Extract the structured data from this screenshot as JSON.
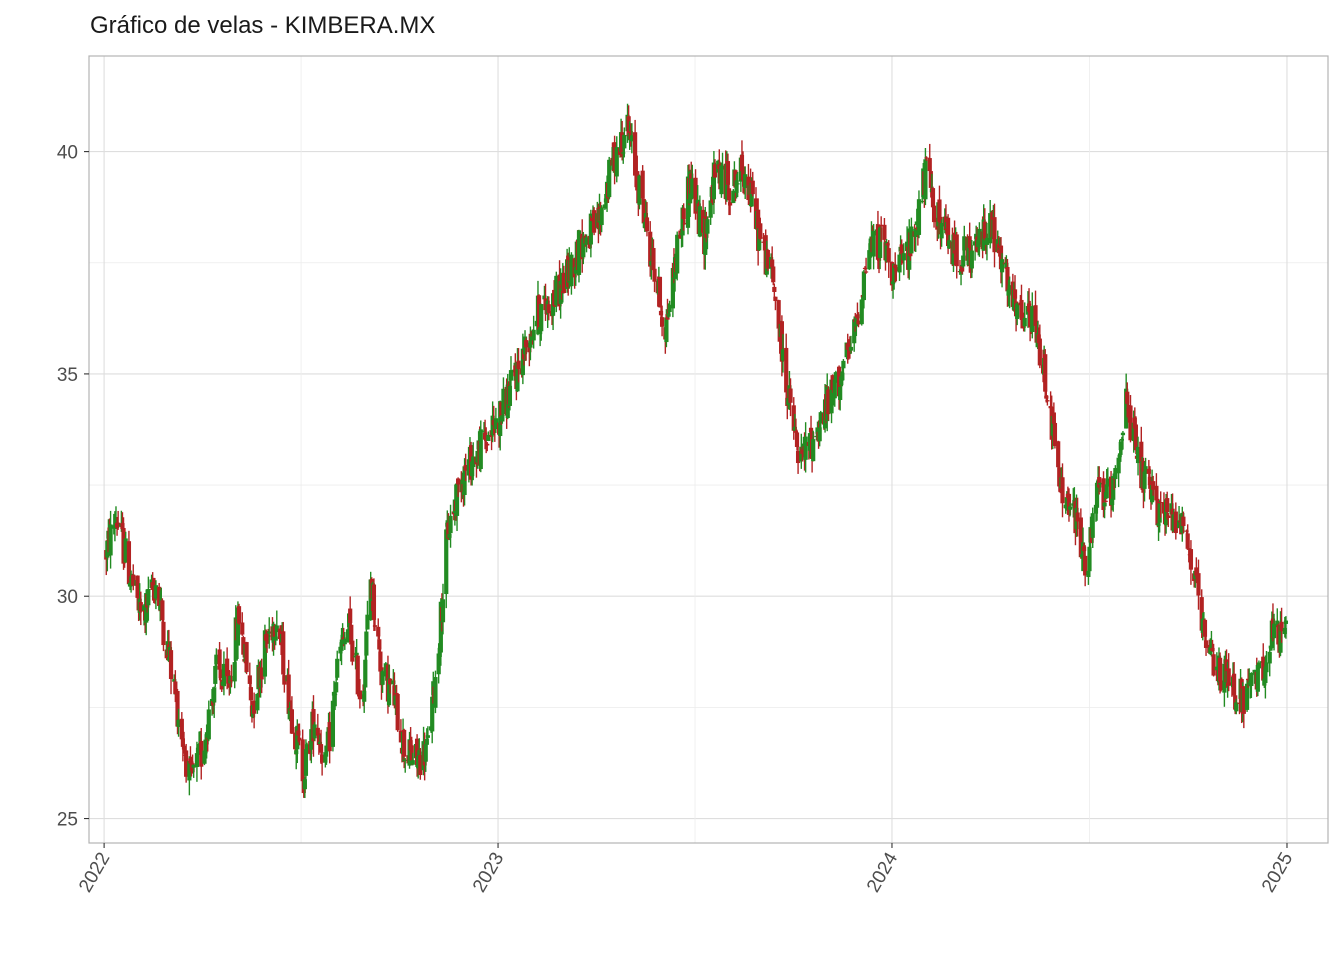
{
  "chart_data": {
    "type": "candlestick",
    "title": "Gráfico de velas - KIMBERA.MX",
    "xlabel": "",
    "ylabel": "",
    "x_ticks": [
      "2022",
      "2023",
      "2024",
      "2025"
    ],
    "y_ticks": [
      25,
      30,
      35,
      40
    ],
    "xlim": [
      "2021-12-18",
      "2025-02-08"
    ],
    "ylim": [
      24.45,
      42.15
    ],
    "grid": true,
    "colors": {
      "up": "#228b22",
      "down": "#b22222"
    },
    "anchors": [
      [
        "2022-01-03",
        31.0
      ],
      [
        "2022-01-12",
        31.8
      ],
      [
        "2022-01-25",
        30.5
      ],
      [
        "2022-02-05",
        29.5
      ],
      [
        "2022-02-18",
        30.3
      ],
      [
        "2022-03-01",
        28.8
      ],
      [
        "2022-03-12",
        27.2
      ],
      [
        "2022-03-22",
        25.8
      ],
      [
        "2022-04-02",
        26.5
      ],
      [
        "2022-04-15",
        28.3
      ],
      [
        "2022-04-26",
        27.9
      ],
      [
        "2022-05-06",
        29.6
      ],
      [
        "2022-05-18",
        27.5
      ],
      [
        "2022-05-30",
        28.9
      ],
      [
        "2022-06-10",
        29.6
      ],
      [
        "2022-06-22",
        27.6
      ],
      [
        "2022-07-05",
        26.0
      ],
      [
        "2022-07-15",
        27.3
      ],
      [
        "2022-07-26",
        26.2
      ],
      [
        "2022-08-06",
        28.6
      ],
      [
        "2022-08-16",
        29.3
      ],
      [
        "2022-08-28",
        27.6
      ],
      [
        "2022-09-05",
        30.4
      ],
      [
        "2022-09-15",
        28.3
      ],
      [
        "2022-09-26",
        27.8
      ],
      [
        "2022-10-07",
        26.5
      ],
      [
        "2022-10-18",
        26.3
      ],
      [
        "2022-10-28",
        26.6
      ],
      [
        "2022-11-06",
        28.6
      ],
      [
        "2022-11-15",
        31.4
      ],
      [
        "2022-11-28",
        32.7
      ],
      [
        "2022-12-12",
        33.2
      ],
      [
        "2023-01-02",
        34.0
      ],
      [
        "2023-01-18",
        35.0
      ],
      [
        "2023-02-05",
        36.3
      ],
      [
        "2023-02-22",
        36.7
      ],
      [
        "2023-03-06",
        37.2
      ],
      [
        "2023-03-20",
        38.0
      ],
      [
        "2023-04-03",
        38.3
      ],
      [
        "2023-04-18",
        39.8
      ],
      [
        "2023-04-30",
        40.6
      ],
      [
        "2023-05-10",
        39.4
      ],
      [
        "2023-05-22",
        37.8
      ],
      [
        "2023-06-05",
        36.0
      ],
      [
        "2023-06-16",
        37.8
      ],
      [
        "2023-06-28",
        39.4
      ],
      [
        "2023-07-10",
        38.0
      ],
      [
        "2023-07-22",
        39.6
      ],
      [
        "2023-08-05",
        39.2
      ],
      [
        "2023-08-18",
        39.6
      ],
      [
        "2023-08-30",
        38.2
      ],
      [
        "2023-09-12",
        37.2
      ],
      [
        "2023-09-25",
        34.8
      ],
      [
        "2023-10-07",
        33.0
      ],
      [
        "2023-10-19",
        33.5
      ],
      [
        "2023-11-01",
        34.2
      ],
      [
        "2023-11-12",
        34.8
      ],
      [
        "2023-11-25",
        35.6
      ],
      [
        "2023-12-10",
        37.8
      ],
      [
        "2023-12-22",
        38.0
      ],
      [
        "2024-01-05",
        37.2
      ],
      [
        "2024-01-20",
        38.0
      ],
      [
        "2024-02-01",
        39.5
      ],
      [
        "2024-02-15",
        38.3
      ],
      [
        "2024-02-28",
        37.8
      ],
      [
        "2024-03-15",
        37.6
      ],
      [
        "2024-03-31",
        38.5
      ],
      [
        "2024-04-12",
        37.4
      ],
      [
        "2024-04-25",
        36.3
      ],
      [
        "2024-05-10",
        36.2
      ],
      [
        "2024-05-22",
        35.0
      ],
      [
        "2024-06-05",
        32.4
      ],
      [
        "2024-06-18",
        31.8
      ],
      [
        "2024-06-30",
        30.6
      ],
      [
        "2024-07-10",
        32.4
      ],
      [
        "2024-07-21",
        32.2
      ],
      [
        "2024-08-05",
        34.3
      ],
      [
        "2024-08-18",
        32.8
      ],
      [
        "2024-08-30",
        32.1
      ],
      [
        "2024-09-12",
        31.8
      ],
      [
        "2024-09-24",
        31.9
      ],
      [
        "2024-10-06",
        30.6
      ],
      [
        "2024-10-18",
        28.7
      ],
      [
        "2024-10-30",
        28.4
      ],
      [
        "2024-11-10",
        28.0
      ],
      [
        "2024-11-22",
        27.7
      ],
      [
        "2024-12-04",
        28.0
      ],
      [
        "2024-12-16",
        29.0
      ],
      [
        "2024-12-31",
        29.1
      ]
    ]
  }
}
